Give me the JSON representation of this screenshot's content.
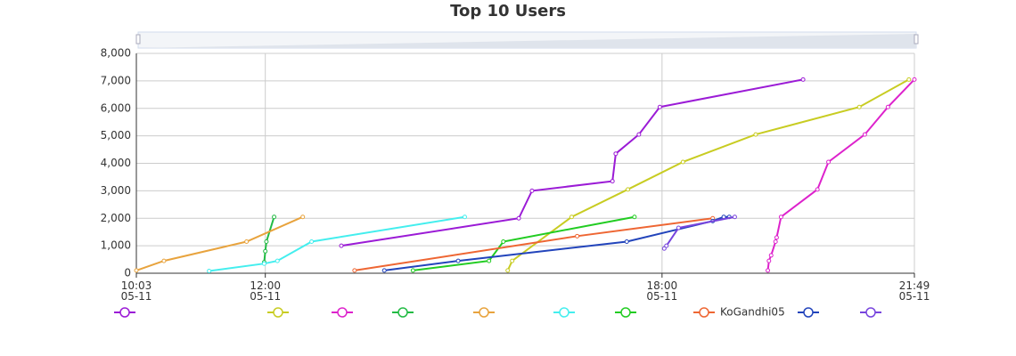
{
  "chart_data": {
    "type": "line",
    "title": "Top 10 Users",
    "xlim": [
      "05-11 10:03",
      "05-11 21:49"
    ],
    "xticks": [
      {
        "value": "05-11 10:03",
        "label": "10:03\n05-11"
      },
      {
        "value": "05-11 12:00",
        "label": "12:00\n05-11"
      },
      {
        "value": "05-11 18:00",
        "label": "18:00\n05-11"
      },
      {
        "value": "05-11 21:49",
        "label": "21:49\n05-11"
      }
    ],
    "ylim": [
      0,
      8000
    ],
    "yticks": [
      0,
      {
        "value": 1000,
        "label": "1,000"
      },
      {
        "value": 2000,
        "label": "2,000"
      },
      {
        "value": 3000,
        "label": "3,000"
      },
      {
        "value": 4000,
        "label": "4,000"
      },
      {
        "value": 5000,
        "label": "5,000"
      },
      {
        "value": 6000,
        "label": "6,000"
      },
      {
        "value": 7000,
        "label": "7,000"
      },
      {
        "value": 8000,
        "label": "8,000"
      }
    ],
    "grid": true,
    "series": [
      {
        "color": "#9b1bd6",
        "x": [
          "05-11 13:09",
          "05-11 15:50",
          "05-11 16:02",
          "05-11 17:15",
          "05-11 17:18",
          "05-11 17:39",
          "05-11 17:58",
          "05-11 20:08"
        ],
        "values": [
          1000,
          2000,
          3000,
          3350,
          4350,
          5050,
          6050,
          7050
        ]
      },
      {
        "color": "#c8cc22",
        "x": [
          "05-11 15:40",
          "05-11 15:44",
          "05-11 16:38",
          "05-11 17:29",
          "05-11 18:19",
          "05-11 19:25",
          "05-11 20:59",
          "05-11 21:44"
        ],
        "values": [
          100,
          450,
          2050,
          3050,
          4050,
          5050,
          6050,
          7050
        ]
      },
      {
        "color": "#dd22cc",
        "x": [
          "05-11 19:36",
          "05-11 19:37",
          "05-11 19:39",
          "05-11 19:43",
          "05-11 19:44",
          "05-11 19:48",
          "05-11 20:21",
          "05-11 20:31",
          "05-11 21:04",
          "05-11 21:25",
          "05-11 21:49"
        ],
        "values": [
          100,
          450,
          650,
          1150,
          1300,
          2050,
          3050,
          4050,
          5050,
          6050,
          7050
        ]
      },
      {
        "color": "#22bb44",
        "x": [
          "05-11 11:59",
          "05-11 12:00",
          "05-11 12:01",
          "05-11 12:08"
        ],
        "values": [
          400,
          800,
          1150,
          2050
        ]
      },
      {
        "color": "#e8a33d",
        "x": [
          "05-11 10:03",
          "05-11 10:28",
          "05-11 11:43",
          "05-11 12:34"
        ],
        "values": [
          100,
          450,
          1150,
          2050
        ]
      },
      {
        "color": "#44eeee",
        "x": [
          "05-11 11:09",
          "05-11 11:59",
          "05-11 12:11",
          "05-11 12:42",
          "05-11 15:01"
        ],
        "values": [
          80,
          350,
          450,
          1150,
          2050
        ]
      },
      {
        "color": "#22cc22",
        "x": [
          "05-11 14:14",
          "05-11 15:23",
          "05-11 15:36",
          "05-11 17:35"
        ],
        "values": [
          100,
          450,
          1150,
          2050
        ]
      },
      {
        "name": "KoGandhi05",
        "color": "#ee6633",
        "x": [
          "05-11 13:21",
          "05-11 16:43",
          "05-11 18:46"
        ],
        "values": [
          100,
          1350,
          2000
        ]
      },
      {
        "color": "#2244bb",
        "x": [
          "05-11 13:48",
          "05-11 14:55",
          "05-11 17:28",
          "05-11 18:46",
          "05-11 18:56",
          "05-11 19:01"
        ],
        "values": [
          100,
          450,
          1150,
          1900,
          2050,
          2050
        ]
      },
      {
        "color": "#7744dd",
        "x": [
          "05-11 18:02",
          "05-11 18:04",
          "05-11 18:15",
          "05-11 19:06"
        ],
        "values": [
          900,
          1000,
          1650,
          2050
        ]
      }
    ]
  }
}
